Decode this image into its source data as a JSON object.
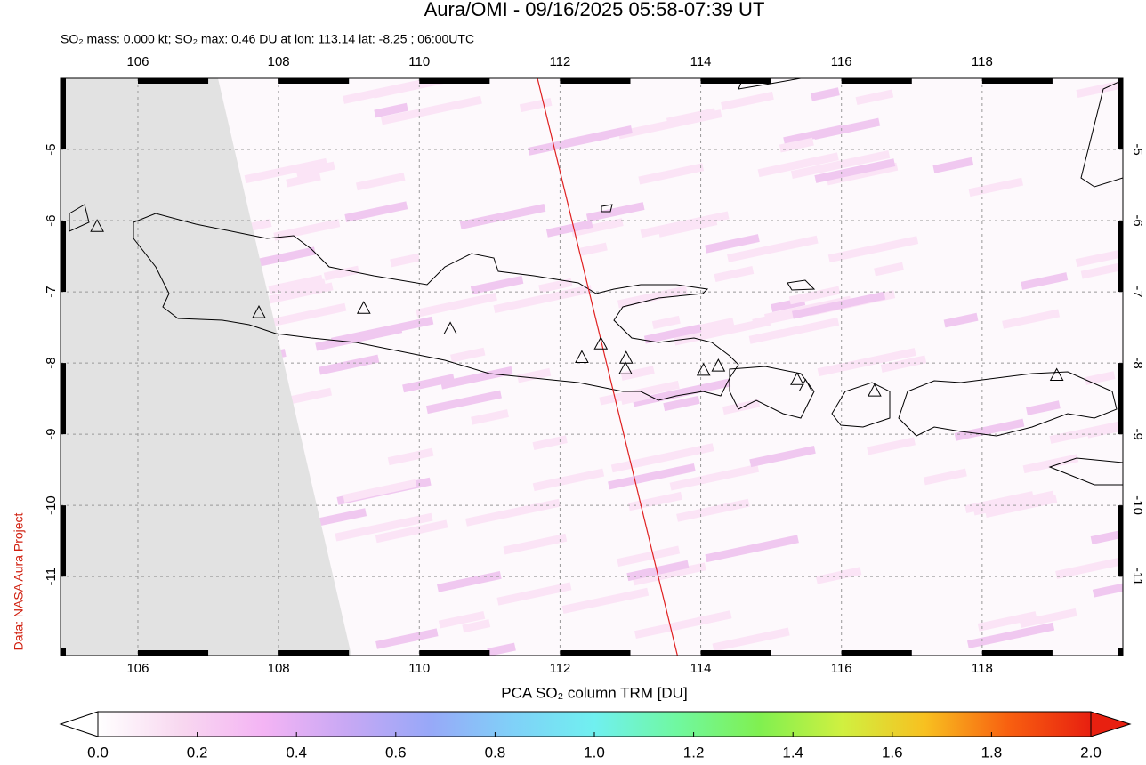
{
  "chart_data": {
    "type": "map",
    "title": "Aura/OMI - 09/16/2025 05:58-07:39 UT",
    "subtitle": "SO₂ mass: 0.000 kt; SO₂ max: 0.46 DU at lon: 113.14 lat: -8.25 ; 06:00UTC",
    "credit": "Data: NASA Aura Project",
    "xlim": [
      104.9,
      120.0
    ],
    "ylim": [
      -12.11,
      -4.0
    ],
    "xticks": [
      106,
      108,
      110,
      112,
      114,
      116,
      118
    ],
    "yticks": [
      -5,
      -6,
      -7,
      -8,
      -9,
      -10,
      -11
    ],
    "grid": true,
    "markers": {
      "x": [
        105.42,
        107.72,
        109.21,
        110.44,
        112.31,
        112.58,
        112.94,
        112.93,
        114.04,
        114.25,
        115.37,
        115.49,
        116.47,
        119.06
      ],
      "y": [
        -6.09,
        -7.3,
        -7.24,
        -7.53,
        -7.93,
        -7.74,
        -7.94,
        -8.09,
        -8.11,
        -8.05,
        -8.24,
        -8.33,
        -8.4,
        -8.18
      ]
    },
    "colorbar": {
      "label": "PCA SO₂ column TRM [DU]",
      "lim": [
        0,
        2
      ],
      "ticks": [
        {
          "value": 0,
          "label": "0.0"
        },
        {
          "value": 0.2,
          "label": "0.2"
        },
        {
          "value": 0.4,
          "label": "0.4"
        },
        {
          "value": 0.6,
          "label": "0.6"
        },
        {
          "value": 0.8,
          "label": "0.8"
        },
        {
          "value": 1,
          "label": "1.0"
        },
        {
          "value": 1.2,
          "label": "1.2"
        },
        {
          "value": 1.4,
          "label": "1.4"
        },
        {
          "value": 1.6,
          "label": "1.6"
        },
        {
          "value": 1.8,
          "label": "1.8"
        },
        {
          "value": 2,
          "label": "2.0"
        }
      ],
      "colors": [
        "#ffffff",
        "#f8d8f0",
        "#f4b4f4",
        "#c8a8f4",
        "#98a8f8",
        "#80d0f8",
        "#70f0f0",
        "#70f8a0",
        "#80f050",
        "#d0f040",
        "#f8c020",
        "#f86010",
        "#e82010"
      ]
    }
  }
}
